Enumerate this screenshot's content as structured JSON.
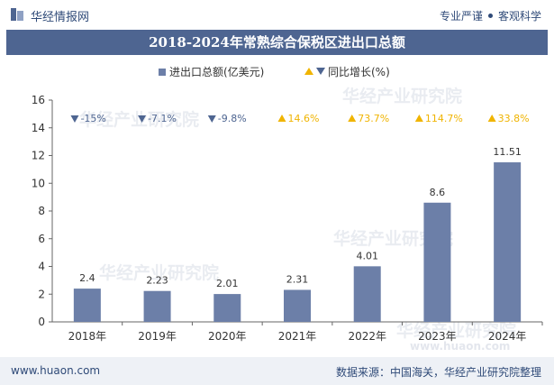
{
  "header": {
    "brand": "华经情报网",
    "tagline_left": "专业严谨",
    "tagline_right": "客观科学"
  },
  "footer": {
    "url": "www.huaon.com",
    "source": "数据来源：中国海关，华经产业研究院整理"
  },
  "watermark": {
    "text": "华经产业研究院",
    "url": "www.huaon.com"
  },
  "colors": {
    "bar": "#6c7fa8",
    "down": "#4e6591",
    "up": "#f0b400",
    "title_bg": "#4e6591"
  },
  "chart_data": {
    "type": "bar",
    "title": "2018-2024年常熟综合保税区进出口总额",
    "categories": [
      "2018年",
      "2019年",
      "2020年",
      "2021年",
      "2022年",
      "2023年",
      "2024年"
    ],
    "series": [
      {
        "name": "进出口总额(亿美元)",
        "values": [
          2.4,
          2.23,
          2.01,
          2.31,
          4.01,
          8.6,
          11.51
        ]
      }
    ],
    "growth": {
      "name": "同比增长(%)",
      "labels": [
        "-15%",
        "-7.1%",
        "-9.8%",
        "14.6%",
        "73.7%",
        "114.7%",
        "33.8%"
      ],
      "directions": [
        "down",
        "down",
        "down",
        "up",
        "up",
        "up",
        "up"
      ]
    },
    "yticks": [
      "0",
      "2",
      "4",
      "6",
      "8",
      "10",
      "12",
      "14",
      "16"
    ],
    "ylim": [
      0,
      16
    ],
    "grid": false,
    "legend_position": "top-center"
  }
}
